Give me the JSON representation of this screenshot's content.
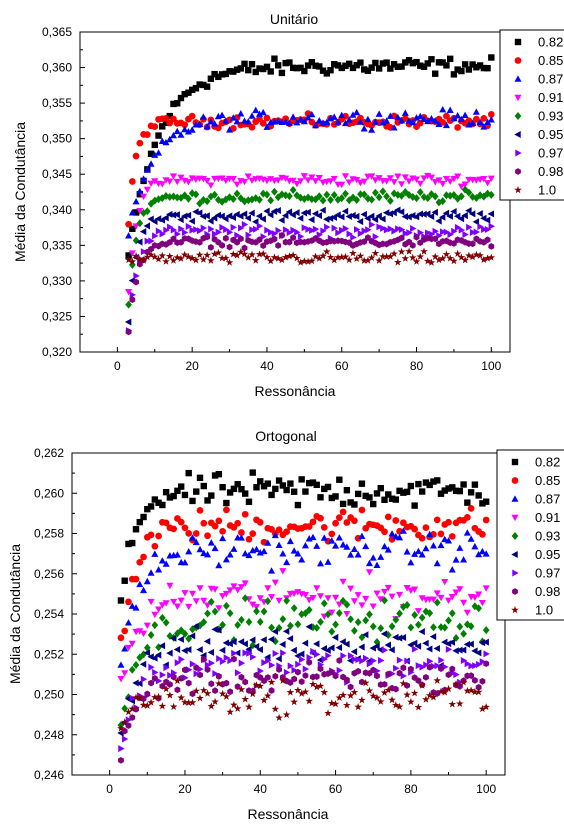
{
  "chart_data": [
    {
      "type": "scatter",
      "title": "Unitário",
      "xlabel": "Ressonância",
      "ylabel": "Média da Condutância",
      "xlim": [
        -10,
        105
      ],
      "ylim": [
        0.32,
        0.365
      ],
      "xticks": [
        "0",
        "20",
        "40",
        "60",
        "80",
        "100"
      ],
      "yticks": [
        "0,320",
        "0,325",
        "0,330",
        "0,335",
        "0,340",
        "0,345",
        "0,350",
        "0,355",
        "0,360",
        "0,365"
      ],
      "x_range": [
        3,
        100
      ],
      "legend_position": "right",
      "series": [
        {
          "name": "0.82",
          "marker": "square",
          "color": "#000000",
          "start": 0.3335,
          "plateau": 0.3602,
          "tau": 8.0,
          "noise": 0.0004
        },
        {
          "name": "0.85",
          "marker": "circle",
          "color": "#ff0000",
          "start": 0.3382,
          "plateau": 0.3524,
          "tau": 2.0,
          "noise": 0.0003
        },
        {
          "name": "0.87",
          "marker": "triangle-up",
          "color": "#0000ff",
          "start": 0.3365,
          "plateau": 0.3528,
          "tau": 6.5,
          "noise": 0.0004
        },
        {
          "name": "0.91",
          "marker": "triangle-down",
          "color": "#ff00ff",
          "start": 0.3285,
          "plateau": 0.3442,
          "tau": 2.2,
          "noise": 0.00025
        },
        {
          "name": "0.93",
          "marker": "diamond",
          "color": "#008000",
          "start": 0.327,
          "plateau": 0.3418,
          "tau": 2.2,
          "noise": 0.0003
        },
        {
          "name": "0.95",
          "marker": "triangle-left",
          "color": "#000080",
          "start": 0.325,
          "plateau": 0.3392,
          "tau": 2.2,
          "noise": 0.0003
        },
        {
          "name": "0.97",
          "marker": "triangle-right",
          "color": "#8000ff",
          "start": 0.3228,
          "plateau": 0.337,
          "tau": 2.2,
          "noise": 0.0003
        },
        {
          "name": "0.98",
          "marker": "hexagon",
          "color": "#800080",
          "start": 0.3225,
          "plateau": 0.3355,
          "tau": 2.2,
          "noise": 0.00025
        },
        {
          "name": "1.0",
          "marker": "star",
          "color": "#800000",
          "start": 0.3325,
          "plateau": 0.3332,
          "tau": 2.0,
          "noise": 0.0003
        }
      ]
    },
    {
      "type": "scatter",
      "title": "Ortogonal",
      "xlabel": "Ressonância",
      "ylabel": "Média da Condutância",
      "xlim": [
        -10,
        105
      ],
      "ylim": [
        0.246,
        0.262
      ],
      "xticks": [
        "0",
        "20",
        "40",
        "60",
        "80",
        "100"
      ],
      "yticks": [
        "0,246",
        "0,248",
        "0,250",
        "0,252",
        "0,254",
        "0,256",
        "0,258",
        "0,260",
        "0,262"
      ],
      "x_range": [
        3,
        100
      ],
      "legend_position": "right",
      "series": [
        {
          "name": "0.82",
          "marker": "square",
          "color": "#000000",
          "start": 0.2543,
          "plateau": 0.2601,
          "tau": 3.5,
          "noise": 0.0003
        },
        {
          "name": "0.85",
          "marker": "circle",
          "color": "#ff0000",
          "start": 0.2523,
          "plateau": 0.2584,
          "tau": 4.0,
          "noise": 0.0003
        },
        {
          "name": "0.87",
          "marker": "triangle-up",
          "color": "#0000ff",
          "start": 0.2515,
          "plateau": 0.2572,
          "tau": 5.0,
          "noise": 0.0003
        },
        {
          "name": "0.91",
          "marker": "triangle-down",
          "color": "#ff00ff",
          "start": 0.2505,
          "plateau": 0.2549,
          "tau": 5.0,
          "noise": 0.00035
        },
        {
          "name": "0.93",
          "marker": "diamond",
          "color": "#008000",
          "start": 0.249,
          "plateau": 0.2537,
          "tau": 5.0,
          "noise": 0.00035
        },
        {
          "name": "0.95",
          "marker": "triangle-left",
          "color": "#000080",
          "start": 0.248,
          "plateau": 0.2525,
          "tau": 4.5,
          "noise": 0.0003
        },
        {
          "name": "0.97",
          "marker": "triangle-right",
          "color": "#8000ff",
          "start": 0.2472,
          "plateau": 0.2515,
          "tau": 4.5,
          "noise": 0.0003
        },
        {
          "name": "0.98",
          "marker": "hexagon",
          "color": "#800080",
          "start": 0.2468,
          "plateau": 0.2508,
          "tau": 4.0,
          "noise": 0.0003
        },
        {
          "name": "1.0",
          "marker": "star",
          "color": "#800000",
          "start": 0.2483,
          "plateau": 0.2499,
          "tau": 3.0,
          "noise": 0.0003
        }
      ]
    }
  ]
}
